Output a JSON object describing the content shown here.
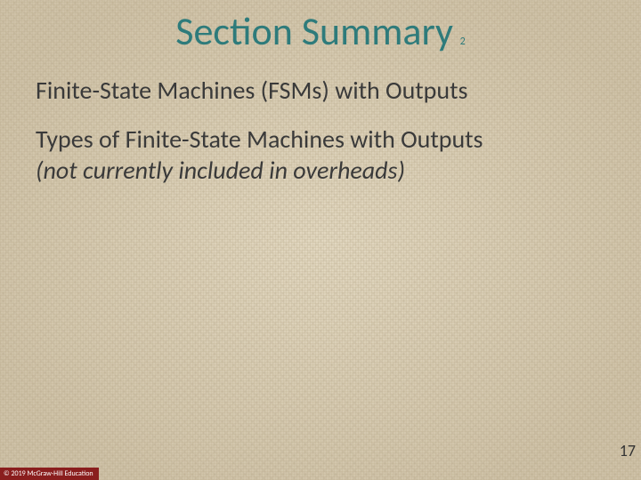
{
  "colors": {
    "title": "#2e7b7b",
    "body": "#3a3a3a",
    "pagenum": "#333333",
    "copyright_bg": "#8a1e1e",
    "copyright_fg": "#ffffff",
    "background_base": "#d9cdb3"
  },
  "typography": {
    "title_fontsize": 44,
    "title_sub_fontsize": 12,
    "body_fontsize": 28,
    "pagenum_fontsize": 18,
    "copyright_fontsize": 8,
    "font_family": "Calibri"
  },
  "title": {
    "main": "Section Summary",
    "subscript": "2"
  },
  "bullets": {
    "item1": "Finite-State Machines (FSMs) with Outputs",
    "item2_line1": "Types of Finite-State Machines with Outputs",
    "item2_line2": "(not currently included in overheads)"
  },
  "page_number": "17",
  "copyright": "© 2019 McGraw-Hill Education"
}
